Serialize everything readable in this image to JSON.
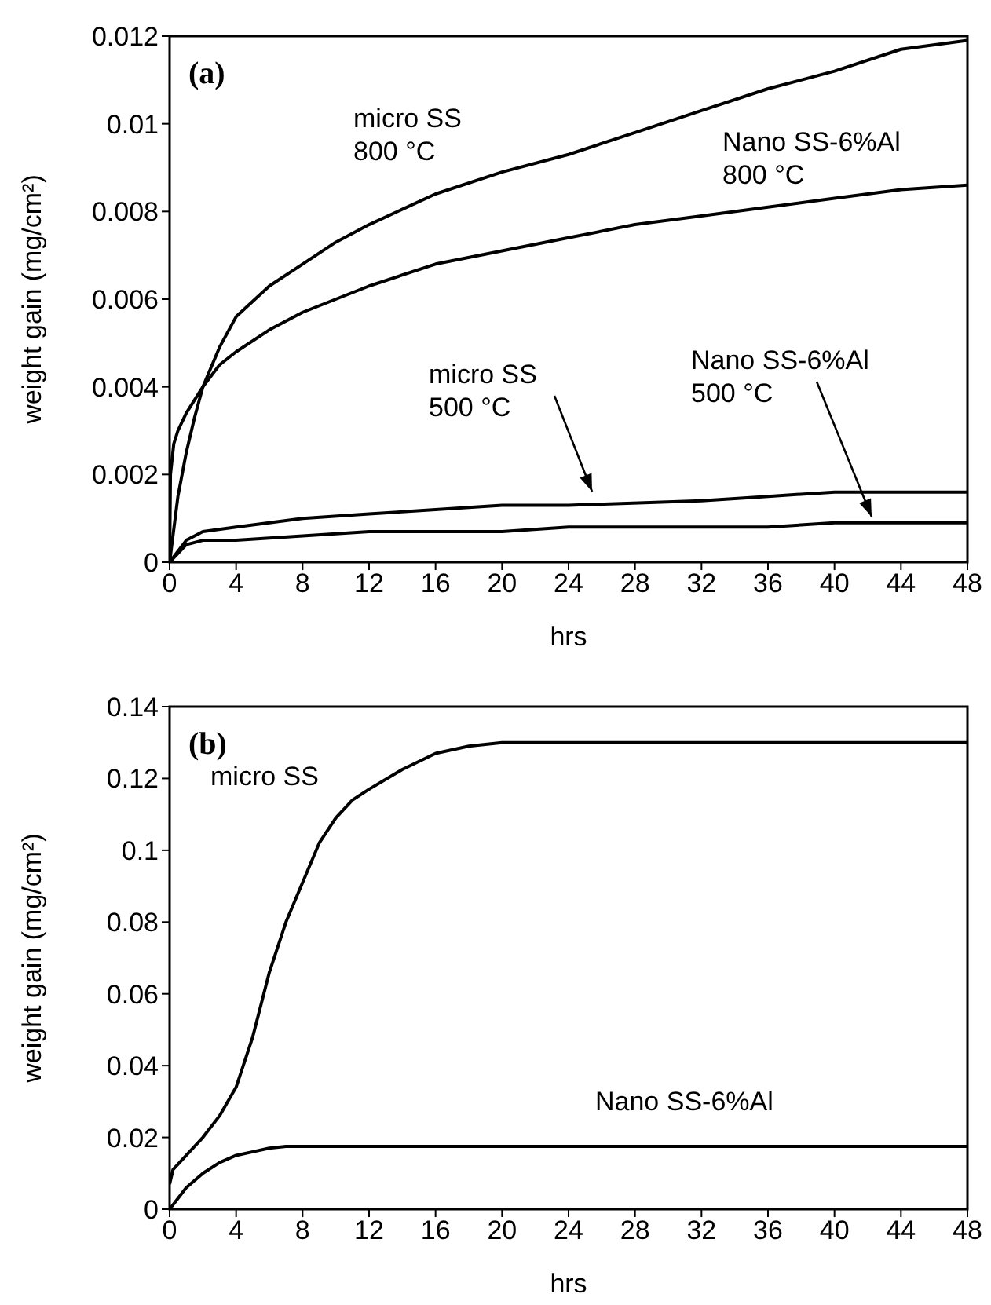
{
  "chart_data": [
    {
      "type": "line",
      "title": "(a)",
      "xlabel": "hrs",
      "ylabel": "weight gain (mg/cm²)",
      "xlim": [
        0,
        48
      ],
      "xticks": [
        0,
        4,
        8,
        12,
        16,
        20,
        24,
        28,
        32,
        36,
        40,
        44,
        48
      ],
      "ylim": [
        0,
        0.012
      ],
      "yticks": [
        0,
        0.002,
        0.004,
        0.006,
        0.008,
        0.01,
        0.012
      ],
      "grid": false,
      "legend": false,
      "marker": "none",
      "line_style": "solid",
      "series": [
        {
          "name": "micro SS\n800 °C",
          "color": "#000000",
          "x": [
            0,
            0.5,
            1,
            1.5,
            2,
            3,
            4,
            6,
            8,
            10,
            12,
            16,
            20,
            24,
            28,
            32,
            36,
            40,
            44,
            48
          ],
          "values": [
            0,
            0.0015,
            0.0025,
            0.0033,
            0.004,
            0.0049,
            0.0056,
            0.0063,
            0.0068,
            0.0073,
            0.0077,
            0.0084,
            0.0089,
            0.0093,
            0.0098,
            0.0103,
            0.0108,
            0.0112,
            0.0117,
            0.0119
          ]
        },
        {
          "name": "Nano SS-6%Al\n800 °C",
          "color": "#000000",
          "x": [
            0,
            0.05,
            0.25,
            0.5,
            1,
            2,
            3,
            4,
            6,
            8,
            12,
            16,
            20,
            24,
            28,
            32,
            36,
            40,
            44,
            48
          ],
          "values": [
            0,
            0.002,
            0.0027,
            0.003,
            0.0034,
            0.004,
            0.0045,
            0.0048,
            0.0053,
            0.0057,
            0.0063,
            0.0068,
            0.0071,
            0.0074,
            0.0077,
            0.0079,
            0.0081,
            0.0083,
            0.0085,
            0.0086
          ]
        },
        {
          "name": "micro SS\n500 °C",
          "color": "#000000",
          "x": [
            0,
            1,
            2,
            4,
            8,
            12,
            16,
            20,
            24,
            32,
            36,
            40,
            48
          ],
          "values": [
            0,
            0.0005,
            0.0007,
            0.0008,
            0.001,
            0.0011,
            0.0012,
            0.0013,
            0.0013,
            0.0014,
            0.0015,
            0.0016,
            0.0016
          ]
        },
        {
          "name": "Nano SS-6%Al\n500 °C",
          "color": "#000000",
          "x": [
            0,
            1,
            2,
            4,
            8,
            12,
            20,
            24,
            36,
            40,
            48
          ],
          "values": [
            0,
            0.0004,
            0.0005,
            0.0005,
            0.0006,
            0.0007,
            0.0007,
            0.0008,
            0.0008,
            0.0009,
            0.0009
          ]
        }
      ]
    },
    {
      "type": "line",
      "title": "(b)",
      "xlabel": "hrs",
      "ylabel": "weight gain (mg/cm²)",
      "xlim": [
        0,
        48
      ],
      "xticks": [
        0,
        4,
        8,
        12,
        16,
        20,
        24,
        28,
        32,
        36,
        40,
        44,
        48
      ],
      "ylim": [
        0,
        0.14
      ],
      "yticks": [
        0,
        0.02,
        0.04,
        0.06,
        0.08,
        0.1,
        0.12,
        0.14
      ],
      "grid": false,
      "legend": false,
      "marker": "none",
      "line_style": "solid",
      "series": [
        {
          "name": "micro SS",
          "color": "#000000",
          "x": [
            0,
            0.2,
            1,
            2,
            3,
            4,
            5,
            6,
            7,
            8,
            9,
            10,
            11,
            12,
            14,
            16,
            18,
            20,
            48
          ],
          "values": [
            0.007,
            0.011,
            0.015,
            0.02,
            0.026,
            0.034,
            0.048,
            0.066,
            0.08,
            0.091,
            0.102,
            0.109,
            0.114,
            0.117,
            0.1225,
            0.127,
            0.129,
            0.13,
            0.13
          ]
        },
        {
          "name": "Nano SS-6%Al",
          "color": "#000000",
          "x": [
            0,
            1,
            2,
            3,
            4,
            5,
            6,
            7,
            48
          ],
          "values": [
            0,
            0.006,
            0.01,
            0.013,
            0.015,
            0.016,
            0.017,
            0.0175,
            0.0175
          ]
        }
      ]
    }
  ]
}
